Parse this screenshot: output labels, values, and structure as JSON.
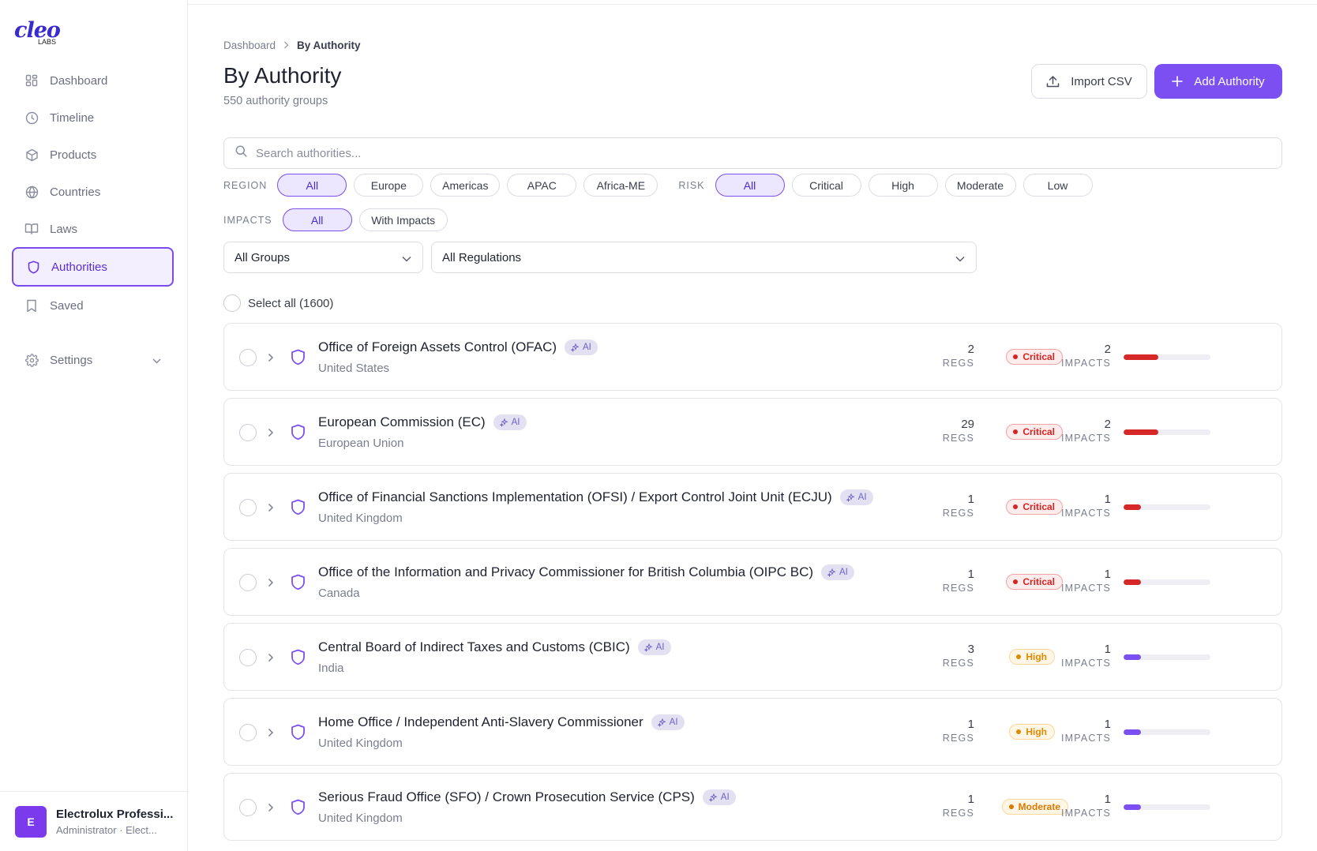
{
  "app": {
    "logo_text": "cleo",
    "logo_sub": "LABS"
  },
  "sidebar": {
    "items": [
      {
        "label": "Dashboard",
        "icon": "dashboard-icon",
        "active": false
      },
      {
        "label": "Timeline",
        "icon": "clock-icon",
        "active": false
      },
      {
        "label": "Products",
        "icon": "box-icon",
        "active": false
      },
      {
        "label": "Countries",
        "icon": "globe-icon",
        "active": false
      },
      {
        "label": "Laws",
        "icon": "book-icon",
        "active": false
      },
      {
        "label": "Authorities",
        "icon": "shield-icon",
        "active": true
      },
      {
        "label": "Saved",
        "icon": "bookmark-icon",
        "active": false
      }
    ],
    "settings_label": "Settings"
  },
  "user": {
    "initial": "E",
    "name": "Electrolux Professi...",
    "role": "Administrator · Elect..."
  },
  "header": {
    "breadcrumb": [
      "Dashboard",
      "By Authority"
    ],
    "title": "By Authority",
    "subtitle": "550 authority groups",
    "import_label": "Import CSV",
    "add_label": "Add Authority"
  },
  "search": {
    "placeholder": "Search authorities..."
  },
  "filters": {
    "region_label": "REGION",
    "region_options": [
      "All",
      "Europe",
      "Americas",
      "APAC",
      "Africa-ME"
    ],
    "region_selected": "All",
    "risk_label": "RISK",
    "risk_options": [
      "All",
      "Critical",
      "High",
      "Moderate",
      "Low"
    ],
    "risk_selected": "All",
    "impacts_label": "IMPACTS",
    "impacts_options": [
      "All",
      "With Impacts"
    ],
    "impacts_selected": "All",
    "groups_select": "All Groups",
    "regulations_select": "All Regulations"
  },
  "select_all_label": "Select all (1600)",
  "labels": {
    "regs": "REGS",
    "impacts": "IMPACTS",
    "ai": "AI"
  },
  "colors": {
    "accent": "#7c4ff2",
    "critical": "#d72323",
    "high": "#e08a00",
    "bar_critical": "#d62828",
    "bar_other": "#7c4ff2"
  },
  "authorities": [
    {
      "name": "Office of Foreign Assets Control (OFAC)",
      "country": "United States",
      "regs": "2",
      "risk": "Critical",
      "impacts": "2",
      "impact_level": 0.4
    },
    {
      "name": "European Commission (EC)",
      "country": "European Union",
      "regs": "29",
      "risk": "Critical",
      "impacts": "2",
      "impact_level": 0.4
    },
    {
      "name": "Office of Financial Sanctions Implementation (OFSI) / Export Control Joint Unit (ECJU)",
      "country": "United Kingdom",
      "regs": "1",
      "risk": "Critical",
      "impacts": "1",
      "impact_level": 0.2
    },
    {
      "name": "Office of the Information and Privacy Commissioner for British Columbia (OIPC BC)",
      "country": "Canada",
      "regs": "1",
      "risk": "Critical",
      "impacts": "1",
      "impact_level": 0.2
    },
    {
      "name": "Central Board of Indirect Taxes and Customs (CBIC)",
      "country": "India",
      "regs": "3",
      "risk": "High",
      "impacts": "1",
      "impact_level": 0.2
    },
    {
      "name": "Home Office / Independent Anti-Slavery Commissioner",
      "country": "United Kingdom",
      "regs": "1",
      "risk": "High",
      "impacts": "1",
      "impact_level": 0.2
    },
    {
      "name": "Serious Fraud Office (SFO) / Crown Prosecution Service (CPS)",
      "country": "United Kingdom",
      "regs": "1",
      "risk": "Moderate",
      "impacts": "1",
      "impact_level": 0.2
    }
  ]
}
